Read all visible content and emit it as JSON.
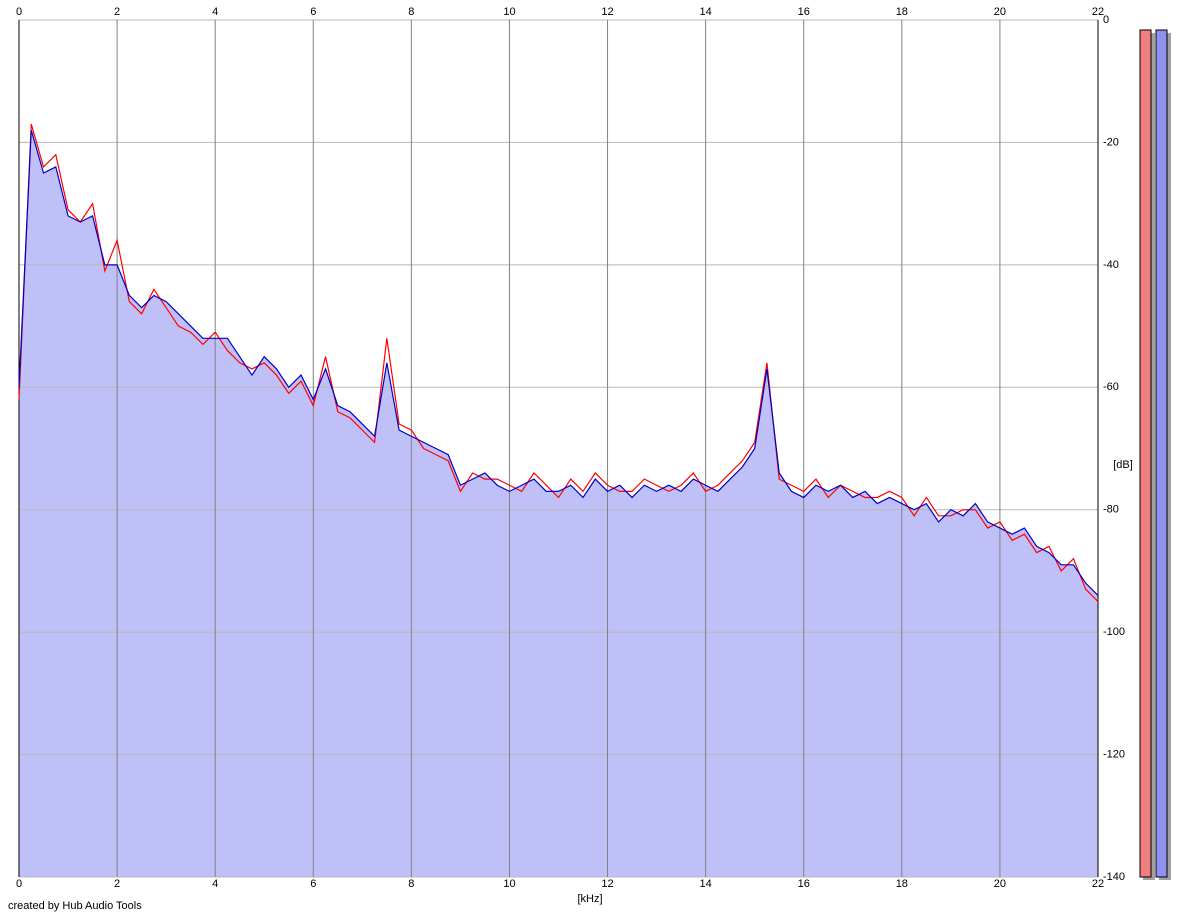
{
  "chart_data": {
    "type": "line",
    "x_label": "[kHz]",
    "y_label": "[dB]",
    "credit": "created by Hub Audio Tools",
    "xlim": [
      0,
      22
    ],
    "ylim": [
      -140,
      0
    ],
    "xticks": [
      0,
      2,
      4,
      6,
      8,
      10,
      12,
      14,
      16,
      18,
      20,
      22
    ],
    "yticks": [
      0,
      -20,
      -40,
      -60,
      -80,
      -100,
      -120,
      -140
    ],
    "grid": true,
    "fill_color": "#c0c0f8",
    "x": [
      0,
      0.25,
      0.5,
      0.75,
      1,
      1.25,
      1.5,
      1.75,
      2,
      2.25,
      2.5,
      2.75,
      3,
      3.25,
      3.5,
      3.75,
      4,
      4.25,
      4.5,
      4.75,
      5,
      5.25,
      5.5,
      5.75,
      6,
      6.25,
      6.5,
      6.75,
      7,
      7.25,
      7.5,
      7.75,
      8,
      8.25,
      8.5,
      8.75,
      9,
      9.25,
      9.5,
      9.75,
      10,
      10.25,
      10.5,
      10.75,
      11,
      11.25,
      11.5,
      11.75,
      12,
      12.25,
      12.5,
      12.75,
      13,
      13.25,
      13.5,
      13.75,
      14,
      14.25,
      14.5,
      14.75,
      15,
      15.25,
      15.5,
      15.75,
      16,
      16.25,
      16.5,
      16.75,
      17,
      17.25,
      17.5,
      17.75,
      18,
      18.25,
      18.5,
      18.75,
      19,
      19.25,
      19.5,
      19.75,
      20,
      20.25,
      20.5,
      20.75,
      21,
      21.25,
      21.5,
      21.75,
      22
    ],
    "series": [
      {
        "color": "#ff0000",
        "values": [
          -62,
          -17,
          -24,
          -22,
          -31,
          -33,
          -30,
          -41,
          -36,
          -46,
          -48,
          -44,
          -47,
          -50,
          -51,
          -53,
          -51,
          -54,
          -56,
          -57,
          -56,
          -58,
          -61,
          -59,
          -63,
          -55,
          -64,
          -65,
          -67,
          -69,
          -52,
          -66,
          -67,
          -70,
          -71,
          -72,
          -77,
          -74,
          -75,
          -75,
          -76,
          -77,
          -74,
          -76,
          -78,
          -75,
          -77,
          -74,
          -76,
          -77,
          -77,
          -75,
          -76,
          -77,
          -76,
          -74,
          -77,
          -76,
          -74,
          -72,
          -69,
          -56,
          -75,
          -76,
          -77,
          -75,
          -78,
          -76,
          -77,
          -78,
          -78,
          -77,
          -78,
          -81,
          -78,
          -81,
          -81,
          -80,
          -80,
          -83,
          -82,
          -85,
          -84,
          -87,
          -86,
          -90,
          -88,
          -93,
          -95
        ]
      },
      {
        "color": "#0000c8",
        "values": [
          -60,
          -18,
          -25,
          -24,
          -32,
          -33,
          -32,
          -40,
          -40,
          -45,
          -47,
          -45,
          -46,
          -48,
          -50,
          -52,
          -52,
          -52,
          -55,
          -58,
          -55,
          -57,
          -60,
          -58,
          -62,
          -57,
          -63,
          -64,
          -66,
          -68,
          -56,
          -67,
          -68,
          -69,
          -70,
          -71,
          -76,
          -75,
          -74,
          -76,
          -77,
          -76,
          -75,
          -77,
          -77,
          -76,
          -78,
          -75,
          -77,
          -76,
          -78,
          -76,
          -77,
          -76,
          -77,
          -75,
          -76,
          -77,
          -75,
          -73,
          -70,
          -57,
          -74,
          -77,
          -78,
          -76,
          -77,
          -76,
          -78,
          -77,
          -79,
          -78,
          -79,
          -80,
          -79,
          -82,
          -80,
          -81,
          -79,
          -82,
          -83,
          -84,
          -83,
          -86,
          -87,
          -89,
          -89,
          -92,
          -94
        ]
      }
    ]
  }
}
